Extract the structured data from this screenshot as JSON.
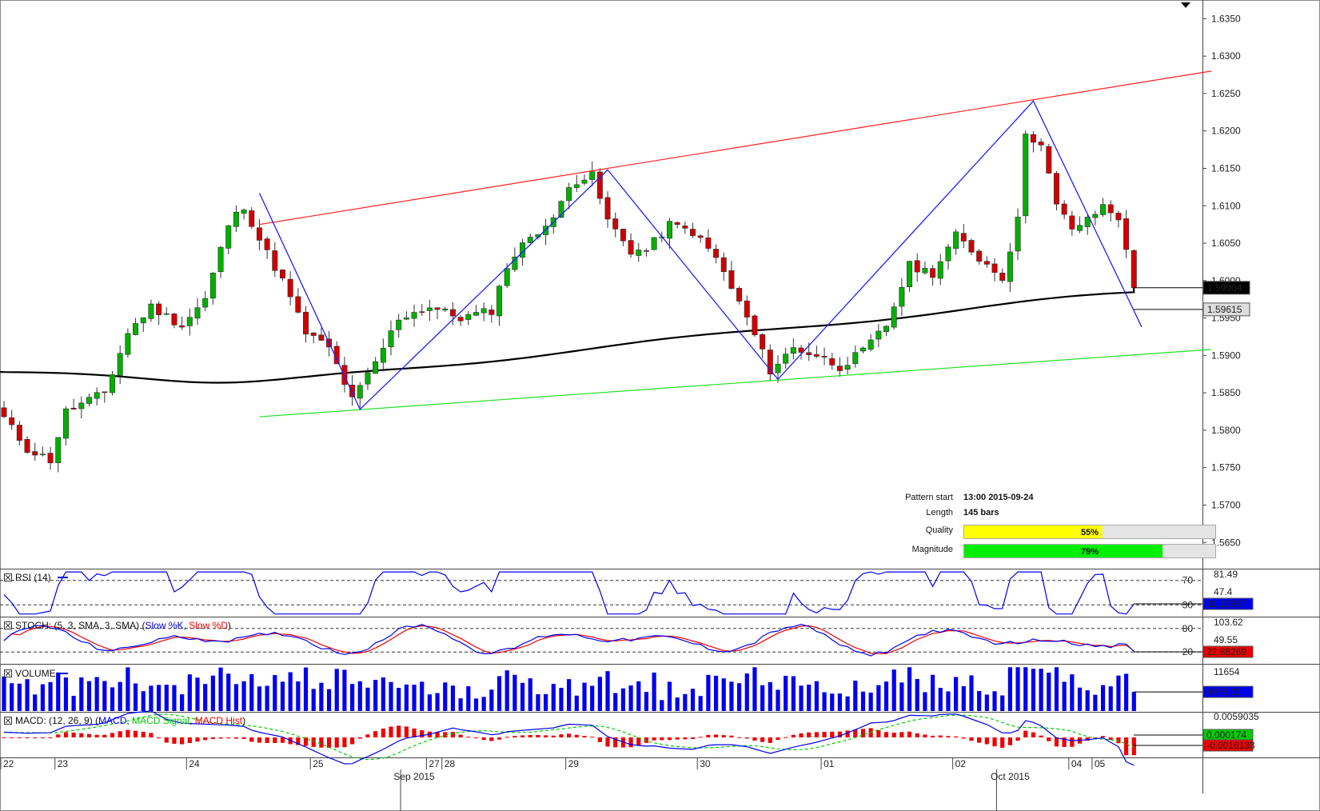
{
  "chart_data": {
    "type": "candlestick",
    "price_axis": {
      "ylim": [
        1.5615,
        1.6375
      ],
      "ticks": [
        "1.6350",
        "1.6300",
        "1.6250",
        "1.6200",
        "1.6150",
        "1.6100",
        "1.6050",
        "1.6000",
        "1.5950",
        "1.5900",
        "1.5850",
        "1.5800",
        "1.5750",
        "1.5700",
        "1.5650"
      ],
      "tick_values": [
        1.635,
        1.63,
        1.625,
        1.62,
        1.615,
        1.61,
        1.605,
        1.6,
        1.595,
        1.59,
        1.585,
        1.58,
        1.575,
        1.57,
        1.565
      ],
      "current_labels": [
        {
          "text": "1.59904",
          "value": 1.59904,
          "style": "dark"
        },
        {
          "text": "1.59615",
          "value": 1.59615,
          "style": "light"
        }
      ]
    },
    "x_axis": {
      "day_labels": [
        {
          "text": "22",
          "bar": 0
        },
        {
          "text": "23",
          "bar": 7
        },
        {
          "text": "24",
          "bar": 24
        },
        {
          "text": "25",
          "bar": 40
        },
        {
          "text": "27",
          "bar": 55
        },
        {
          "text": "28",
          "bar": 57
        },
        {
          "text": "29",
          "bar": 73
        },
        {
          "text": "30",
          "bar": 90
        },
        {
          "text": "01",
          "bar": 106
        },
        {
          "text": "02",
          "bar": 123
        },
        {
          "text": "04",
          "bar": 138
        },
        {
          "text": "05",
          "bar": 141
        }
      ],
      "month_labels": [
        {
          "text": "Sep 2015",
          "bar": 53
        },
        {
          "text": "Oct 2015",
          "bar": 130
        }
      ]
    },
    "trend_lines": [
      {
        "name": "resistance",
        "color": "#ff2020",
        "from": [
          33,
          1.6075
        ],
        "to": [
          156,
          1.628
        ]
      },
      {
        "name": "support",
        "color": "#20e020",
        "from": [
          33,
          1.5818
        ],
        "to": [
          156,
          1.5908
        ]
      }
    ],
    "zigzag": {
      "color": "#2020ff",
      "points": [
        [
          33,
          1.6117
        ],
        [
          46,
          1.5828
        ],
        [
          78,
          1.6148
        ],
        [
          100,
          1.5868
        ],
        [
          133,
          1.624
        ],
        [
          147,
          1.5938
        ]
      ]
    },
    "pattern_info": {
      "pattern_start_label": "Pattern start",
      "pattern_start_value": "13:00 2015-09-24",
      "length_label": "Length",
      "length_value": "145 bars",
      "quality_label": "Quality",
      "quality_value": "55%",
      "quality": 0.55,
      "magnitude_label": "Magnitude",
      "magnitude_value": "79%",
      "magnitude": 0.79,
      "quality_color": "#ffff00",
      "magnitude_color": "#00ee00"
    },
    "rsi": {
      "title": "RSI (14)",
      "levels": [
        "70",
        "30"
      ],
      "scale_labels": [
        "81.49",
        "47.4"
      ],
      "current_label": "31.12957",
      "ylim": [
        12,
        88
      ]
    },
    "stoch": {
      "title_prefix": "STOCH: (5, 3, SMA, 3, SMA) (",
      "k_name": "Slow %K",
      "d_name": "Slow %D",
      "levels": [
        "80",
        "20"
      ],
      "scale_labels": [
        "103.62",
        "49.55"
      ],
      "current_label": "22.88269",
      "ylim": [
        -8,
        108
      ]
    },
    "volume": {
      "title": "VOLUME",
      "scale_label": "11654",
      "current_label": "4978.21",
      "ymax": 11654
    },
    "macd": {
      "title_prefix": "MACD: (12, 26, 9) (",
      "macd_name": "MACD",
      "signal_name": "MACD Signal",
      "hist_name": "MACD Hist",
      "scale_label": "0.0059035",
      "current_labels": [
        "0.000174",
        "-0.0016133"
      ]
    },
    "colors": {
      "bull": "#00b000",
      "bear": "#d00000",
      "ma": "#000000",
      "rsi": "#0000ee",
      "stoch_k": "#0000ee",
      "stoch_d": "#ee0000",
      "volume": "#0000ee",
      "macd": "#0000ee",
      "macd_signal": "#00cc00",
      "macd_hist": "#ee0000"
    }
  }
}
